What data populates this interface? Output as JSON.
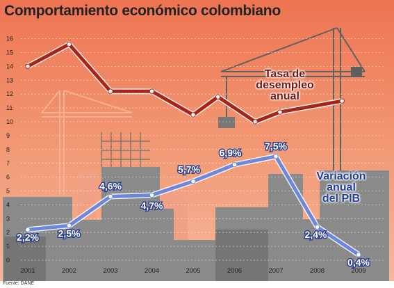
{
  "chart_data": {
    "type": "line",
    "title": "Comportamiento económico colombiano",
    "categories": [
      "2001",
      "2002",
      "2003",
      "2004",
      "2005",
      "2006",
      "2007",
      "2008",
      "2009"
    ],
    "ylim": [
      0,
      17
    ],
    "yticks": [
      "0",
      "1",
      "2",
      "3",
      "4",
      "5",
      "6",
      "7",
      "8",
      "9",
      "10",
      "11",
      "12",
      "13",
      "14",
      "15",
      "16"
    ],
    "grid": true,
    "series": [
      {
        "name": "Tasa de desempleo anual",
        "color": "#a7241a",
        "x": [
          2001,
          2002,
          2003,
          2004,
          2005,
          2005.6,
          2006.5,
          2007.1,
          2008.6
        ],
        "values": [
          14.0,
          15.6,
          12.2,
          12.2,
          10.5,
          11.8,
          10.0,
          10.7,
          11.5
        ]
      },
      {
        "name": "Variación anual del PIB",
        "color": "#6b88dd",
        "x": [
          2001,
          2002,
          2003,
          2004,
          2005,
          2006,
          2007,
          2008,
          2009
        ],
        "values": [
          2.2,
          2.5,
          4.6,
          4.7,
          5.7,
          6.9,
          7.5,
          2.4,
          0.4
        ],
        "labels": [
          "2,2%",
          "2,5%",
          "4,6%",
          "4,7%",
          "5,7%",
          "6,9%",
          "7,5%",
          "2,4%",
          "0,4%"
        ]
      }
    ],
    "source": "Fuente: DANE"
  },
  "labels": {
    "unemployment": "Tasa de\ndesempleo\nanual",
    "gdp": "Variación\nanual\ndel PIB"
  }
}
